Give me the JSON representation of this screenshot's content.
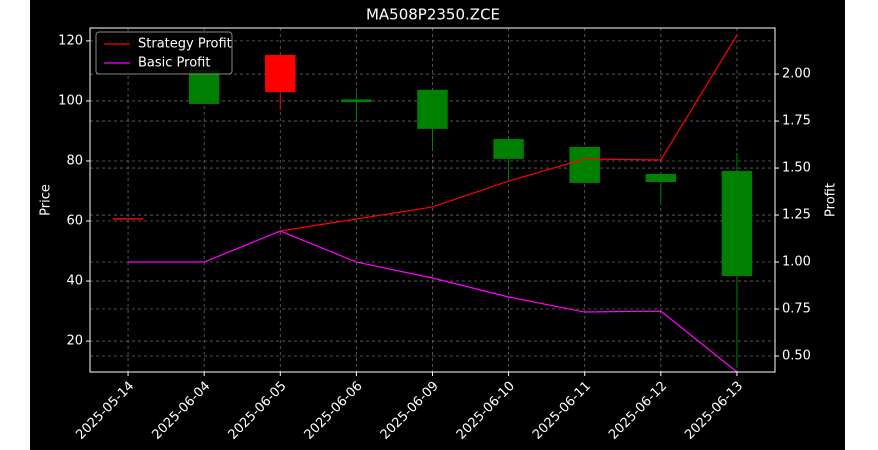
{
  "chart_data": {
    "type": "candlestick",
    "title": "MA508P2350.ZCE",
    "categories": [
      "2025-05-14",
      "2025-06-04",
      "2025-06-05",
      "2025-06-06",
      "2025-06-09",
      "2025-06-10",
      "2025-06-11",
      "2025-06-12",
      "2025-06-13"
    ],
    "open": [
      60.7,
      110.3,
      103.0,
      100.5,
      103.7,
      87.3,
      84.7,
      75.7,
      76.7
    ],
    "high": [
      60.7,
      110.3,
      115.3,
      103.0,
      103.7,
      87.3,
      84.7,
      75.7,
      82.7
    ],
    "low": [
      60.7,
      99.0,
      97.0,
      93.0,
      84.3,
      73.7,
      72.7,
      66.3,
      11.0
    ],
    "close": [
      60.7,
      99.0,
      115.3,
      99.6,
      90.7,
      80.7,
      72.7,
      73.0,
      41.7
    ],
    "up_color": "#ff0000",
    "down_color": "#008000",
    "series": [
      {
        "name": "Strategy Profit",
        "color": "#ff0000",
        "axis": "y2",
        "values": [
          null,
          null,
          1.165,
          1.229,
          1.293,
          1.431,
          1.548,
          1.543,
          2.207
        ]
      },
      {
        "name": "Basic Profit",
        "color": "#ff00ff",
        "axis": "y2",
        "values": [
          1.0,
          1.0,
          1.165,
          1.0,
          0.915,
          0.814,
          0.734,
          0.739,
          0.415
        ]
      }
    ],
    "ylabel": "Price",
    "y2label": "Profit",
    "ylim": [
      9.7,
      124.3
    ],
    "yticks": [
      20,
      40,
      60,
      80,
      100,
      120
    ],
    "y2lim": [
      0.415,
      2.245
    ],
    "y2ticks": [
      {
        "value": 0.5,
        "label": "0.50"
      },
      {
        "value": 0.75,
        "label": "0.75"
      },
      {
        "value": 1.0,
        "label": "1.00"
      },
      {
        "value": 1.25,
        "label": "1.25"
      },
      {
        "value": 1.5,
        "label": "1.50"
      },
      {
        "value": 1.75,
        "label": "1.75"
      },
      {
        "value": 2.0,
        "label": "2.00"
      }
    ],
    "grid": true,
    "legend": "upper-left"
  }
}
